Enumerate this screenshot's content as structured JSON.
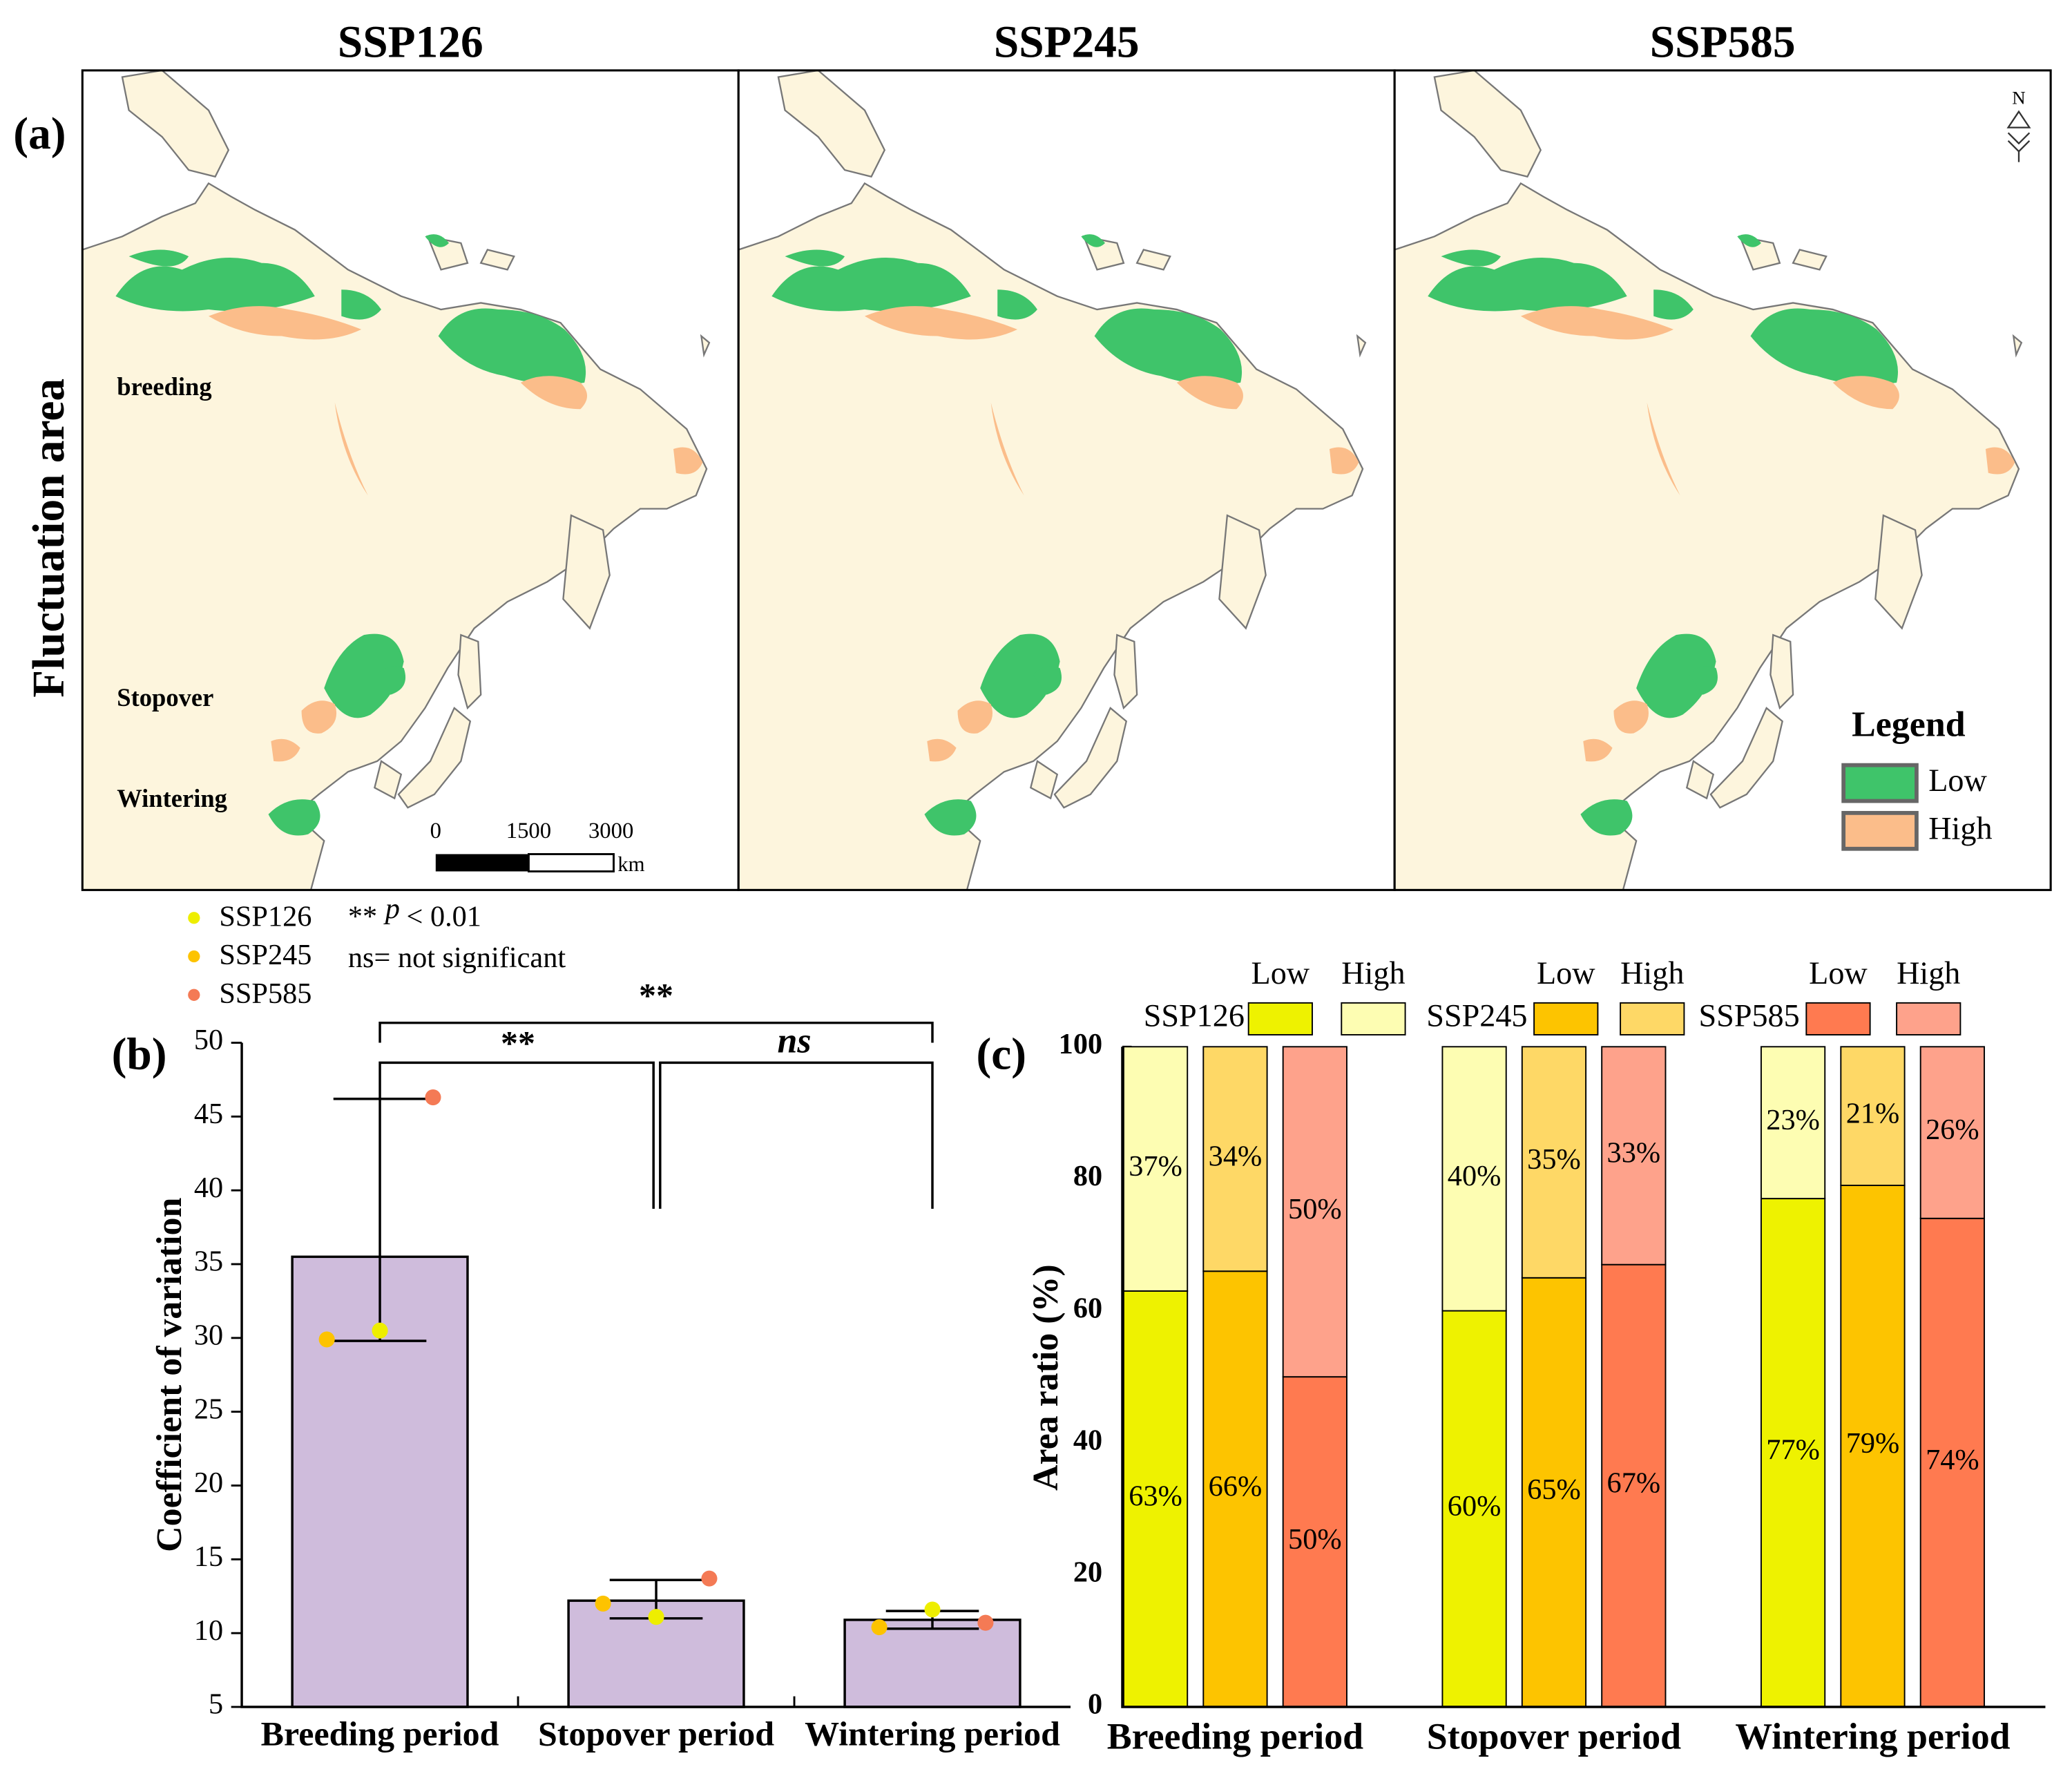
{
  "panel_a": {
    "label": "(a)",
    "ylabel": "Fluctuation area",
    "titles": [
      "SSP126",
      "SSP245",
      "SSP585"
    ],
    "regions": [
      "breeding",
      "Stopover",
      "Wintering"
    ],
    "scale_labels": [
      "0",
      "1500",
      "3000"
    ],
    "scale_unit": "km",
    "north": "N",
    "legend_title": "Legend",
    "legend": [
      {
        "name": "Low",
        "color": "#3fc46a"
      },
      {
        "name": "High",
        "color": "#fbbd8a"
      }
    ]
  },
  "chart_data": [
    {
      "type": "bar",
      "label": "(b)",
      "ylabel": "Coefficient of variation",
      "categories": [
        "Breeding period",
        "Stopover period",
        "Wintering period"
      ],
      "values": [
        35.5,
        12.2,
        10.9
      ],
      "color": "#cfbcdc",
      "range_low": [
        29.8,
        11.0,
        10.3
      ],
      "range_high": [
        46.2,
        13.6,
        11.5
      ],
      "series": [
        {
          "name": "SSP126",
          "color": "#eeee00",
          "values": [
            30.5,
            11.1,
            11.6
          ]
        },
        {
          "name": "SSP245",
          "color": "#fdc300",
          "values": [
            29.9,
            12.0,
            10.4
          ]
        },
        {
          "name": "SSP585",
          "color": "#f47a55",
          "values": [
            46.3,
            13.7,
            10.7
          ]
        }
      ],
      "ylim": [
        5,
        50
      ],
      "yticks": [
        5,
        10,
        15,
        20,
        25,
        30,
        35,
        40,
        45,
        50
      ],
      "annotations": [
        "**",
        "**",
        "ns"
      ],
      "notes": [
        "**",
        "p",
        "< 0.01",
        "ns= not significant"
      ]
    },
    {
      "type": "stacked_bar",
      "label": "(c)",
      "ylabel": "Area ratio (%)",
      "categories": [
        "Breeding period",
        "Stopover period",
        "Wintering period"
      ],
      "segments": [
        "Low",
        "High"
      ],
      "series": [
        {
          "name": "SSP126",
          "colors": [
            "#eef200",
            "#fdfdb2"
          ],
          "values": [
            [
              63,
              60,
              77
            ],
            [
              37,
              40,
              23
            ]
          ],
          "value_labels": [
            [
              "63%",
              "60%",
              "77%"
            ],
            [
              "37%",
              "40%",
              "23%"
            ]
          ]
        },
        {
          "name": "SSP245",
          "colors": [
            "#fdc400",
            "#fed866"
          ],
          "values": [
            [
              66,
              65,
              79
            ],
            [
              34,
              35,
              21
            ]
          ],
          "value_labels": [
            [
              "66%",
              "65%",
              "79%"
            ],
            [
              "34%",
              "35%",
              "21%"
            ]
          ]
        },
        {
          "name": "SSP585",
          "colors": [
            "#ff7a50",
            "#fea28b"
          ],
          "values": [
            [
              50,
              67,
              74
            ],
            [
              50,
              33,
              26
            ]
          ],
          "value_labels": [
            [
              "50%",
              "67%",
              "74%"
            ],
            [
              "50%",
              "33%",
              "26%"
            ]
          ]
        }
      ],
      "ylim": [
        0,
        100
      ],
      "yticks": [
        0,
        20,
        40,
        60,
        80,
        100
      ]
    }
  ]
}
